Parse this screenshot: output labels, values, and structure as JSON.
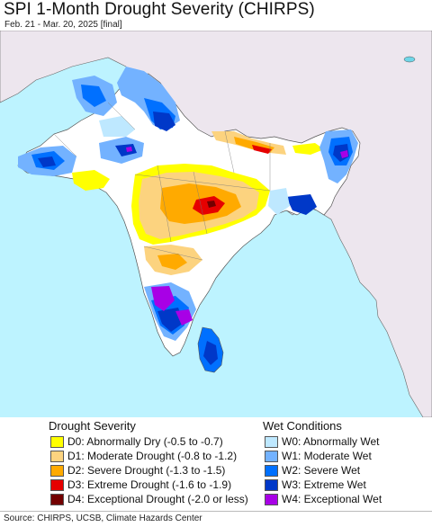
{
  "header": {
    "title": "SPI 1-Month Drought Severity (CHIRPS)",
    "subtitle": "Feb. 21 - Mar. 20, 2025 [final]"
  },
  "legend": {
    "drought": {
      "heading": "Drought Severity",
      "items": [
        {
          "code": "D0",
          "label": "D0: Abnormally Dry (-0.5 to -0.7)",
          "color": "#ffff00"
        },
        {
          "code": "D1",
          "label": "D1: Moderate Drought (-0.8 to -1.2)",
          "color": "#fcd37f"
        },
        {
          "code": "D2",
          "label": "D2: Severe Drought (-1.3 to -1.5)",
          "color": "#ffaa00"
        },
        {
          "code": "D3",
          "label": "D3: Extreme Drought (-1.6 to -1.9)",
          "color": "#e60000"
        },
        {
          "code": "D4",
          "label": "D4: Exceptional Drought (-2.0 or less)",
          "color": "#730000"
        }
      ]
    },
    "wet": {
      "heading": "Wet Conditions",
      "items": [
        {
          "code": "W0",
          "label": "W0: Abnormally Wet",
          "color": "#bee8ff"
        },
        {
          "code": "W1",
          "label": "W1: Moderate Wet",
          "color": "#73b2ff"
        },
        {
          "code": "W2",
          "label": "W2: Severe Wet",
          "color": "#0070ff"
        },
        {
          "code": "W3",
          "label": "W3: Extreme Wet",
          "color": "#0038c8"
        },
        {
          "code": "W4",
          "label": "W4: Exceptional Wet",
          "color": "#a800e6"
        }
      ]
    }
  },
  "footer": {
    "source": "Source: CHIRPS, UCSB, Climate Hazards Center"
  },
  "map_colors": {
    "ocean": "#bdf3ff",
    "land_outside": "#ede6ee",
    "land_normal": "#ffffff",
    "borders": "#555555"
  }
}
